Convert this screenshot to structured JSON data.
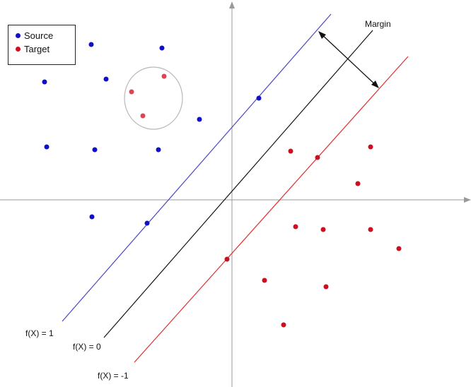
{
  "legend": {
    "items": [
      {
        "label": "Source",
        "color": "#1010c8"
      },
      {
        "label": "Target",
        "color": "#cc1020"
      }
    ]
  },
  "labels": {
    "margin": "Margin",
    "f_pos": "f(X) = 1",
    "f_zero": "f(X) = 0",
    "f_neg": "f(X) = -1"
  },
  "colors": {
    "axis": "#9a9a9a",
    "pos_line": "#4a48c8",
    "zero_line": "#111111",
    "neg_line": "#e03030",
    "circle": "#b8b8b8",
    "source": "#1010c8",
    "target": "#cc1020",
    "target_in_circle": "#dd4455"
  }
}
